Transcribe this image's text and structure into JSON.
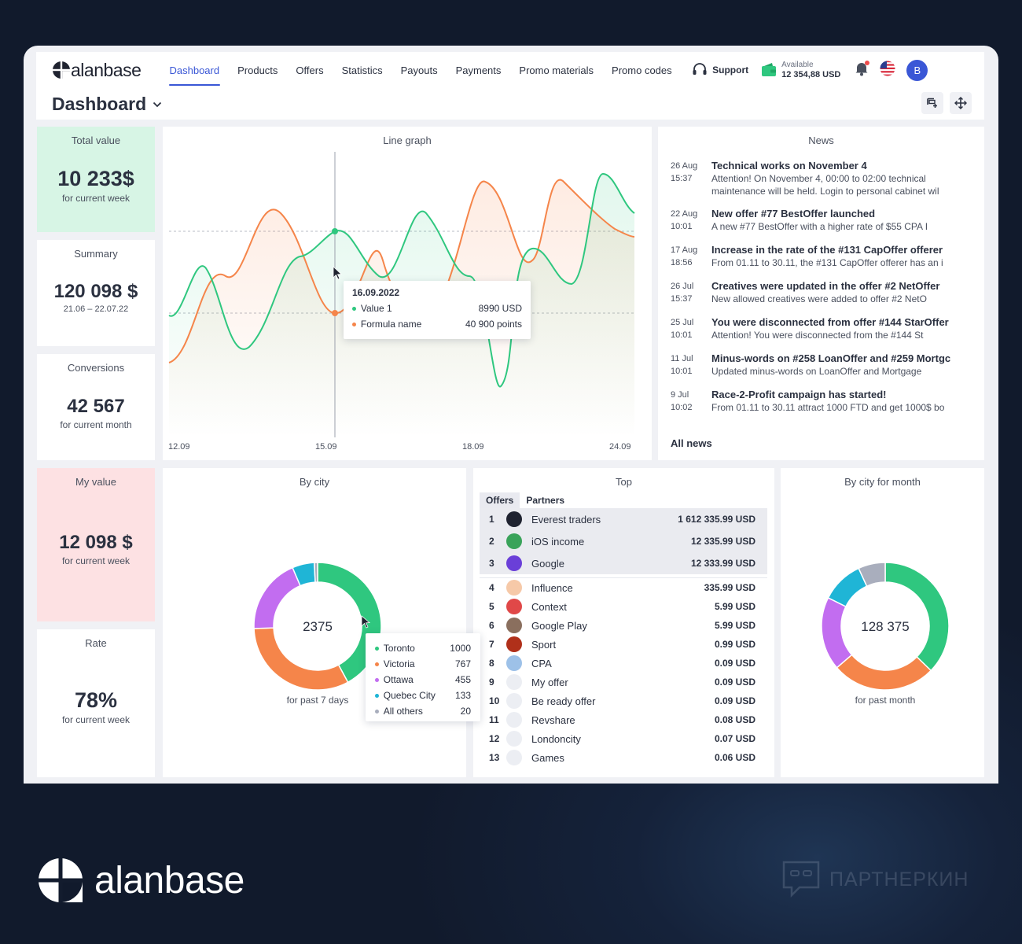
{
  "app": {
    "logo_text": "alanbase",
    "brand_text": "alanbase",
    "watermark_text": "ПАРТНЕРКИН"
  },
  "nav": {
    "items": [
      {
        "label": "Dashboard",
        "active": true
      },
      {
        "label": "Products"
      },
      {
        "label": "Offers"
      },
      {
        "label": "Statistics"
      },
      {
        "label": "Payouts"
      },
      {
        "label": "Payments"
      },
      {
        "label": "Promo materials"
      },
      {
        "label": "Promo codes"
      }
    ],
    "support_label": "Support",
    "wallet_label": "Available",
    "wallet_value": "12 354,88 USD",
    "avatar_letter": "B"
  },
  "page": {
    "title": "Dashboard"
  },
  "stats": {
    "total": {
      "title": "Total value",
      "value": "10 233$",
      "sub": "for current week",
      "bg": "#d7f5e5"
    },
    "summary": {
      "title": "Summary",
      "value": "120 098 $",
      "sub": "21.06 – 22.07.22"
    },
    "conversions": {
      "title": "Conversions",
      "value": "42 567",
      "sub": "for current month"
    },
    "myvalue": {
      "title": "My value",
      "value": "12 098 $",
      "sub": "for current week",
      "bg": "#fde1e3"
    },
    "rate": {
      "title": "Rate",
      "value": "78%",
      "sub": "for current week"
    }
  },
  "line_chart": {
    "title": "Line graph",
    "x_ticks": [
      "12.09",
      "15.09",
      "18.09",
      "24.09"
    ],
    "tooltip": {
      "date": "16.09.2022",
      "rows": [
        {
          "name": "Value 1",
          "value": "8990 USD",
          "color": "#2fc77f"
        },
        {
          "name": "Formula name",
          "value": "40 900 points",
          "color": "#f5854a"
        }
      ]
    },
    "colors": {
      "green": "#2fc77f",
      "orange": "#f5854a"
    }
  },
  "news": {
    "title": "News",
    "items": [
      {
        "date": "26 Aug",
        "time": "15:37",
        "title": "Technical works on November 4",
        "text": "Attention! On November 4, 00:00 to 02:00 technical maintenance will be held. Login to personal cabinet wil",
        "two_lines": true
      },
      {
        "date": "22 Aug",
        "time": "10:01",
        "title": "New offer #77 BestOffer launched",
        "text": "A new #77 BestOffer with a higher rate of $55 CPA I"
      },
      {
        "date": "17 Aug",
        "time": "18:56",
        "title": "Increase in the rate of the #131 CapOffer offerer",
        "text": "From 01.11 to 30.11, the #131 CapOffer offerer has an i"
      },
      {
        "date": "26 Jul",
        "time": "15:37",
        "title": "Creatives were updated in the offer #2 NetOffer",
        "text": "New allowed creatives were added to offer #2 NetO"
      },
      {
        "date": "25 Jul",
        "time": "10:01",
        "title": "You were disconnected from offer #144 StarOffer",
        "text": "Attention! You were disconnected from the #144 St"
      },
      {
        "date": "11 Jul",
        "time": "10:01",
        "title": "Minus-words on #258 LoanOffer and #259 Mortgc",
        "text": "Updated minus-words on LoanOffer and Mortgage"
      },
      {
        "date": "9 Jul",
        "time": "10:02",
        "title": "Race-2-Profit campaign has started!",
        "text": "From 01.11 to 30.11 attract 1000 FTD and get 1000$ bo"
      }
    ],
    "all_link": "All news"
  },
  "by_city": {
    "title": "By city",
    "center": "2375",
    "caption": "for past 7 days",
    "legend": [
      {
        "name": "Toronto",
        "value": "1000",
        "color": "#2fc77f"
      },
      {
        "name": "Victoria",
        "value": "767",
        "color": "#f5854a"
      },
      {
        "name": "Ottawa",
        "value": "455",
        "color": "#c26df0"
      },
      {
        "name": "Quebec City",
        "value": "133",
        "color": "#1fb5d6"
      },
      {
        "name": "All others",
        "value": "20",
        "color": "#a9aebd"
      }
    ]
  },
  "top": {
    "title": "Top",
    "tabs": [
      "Offers",
      "Partners"
    ],
    "rows": [
      {
        "rank": "1",
        "name": "Everest traders",
        "value": "1 612 335.99 USD",
        "icon_color": "#1f2330"
      },
      {
        "rank": "2",
        "name": "iOS income",
        "value": "12 335.99 USD",
        "icon_color": "#3aa35a"
      },
      {
        "rank": "3",
        "name": "Google",
        "value": "12 333.99 USD",
        "icon_color": "#6a3fd8"
      },
      {
        "rank": "4",
        "name": "Influence",
        "value": "335.99 USD",
        "icon_color": "#f6c9a8"
      },
      {
        "rank": "5",
        "name": "Context",
        "value": "5.99 USD",
        "icon_color": "#e04848"
      },
      {
        "rank": "6",
        "name": "Google Play",
        "value": "5.99 USD",
        "icon_color": "#8a6f5e"
      },
      {
        "rank": "7",
        "name": "Sport",
        "value": "0.99 USD",
        "icon_color": "#b0301a"
      },
      {
        "rank": "8",
        "name": "CPA",
        "value": "0.09 USD",
        "icon_color": "#9dc1e8"
      },
      {
        "rank": "9",
        "name": "My offer",
        "value": "0.09 USD",
        "icon_color": "#eceef3"
      },
      {
        "rank": "10",
        "name": "Be ready offer",
        "value": "0.09 USD",
        "icon_color": "#eceef3"
      },
      {
        "rank": "11",
        "name": "Revshare",
        "value": "0.08 USD",
        "icon_color": "#eceef3"
      },
      {
        "rank": "12",
        "name": "Londoncity",
        "value": "0.07 USD",
        "icon_color": "#eceef3"
      },
      {
        "rank": "13",
        "name": "Games",
        "value": "0.06 USD",
        "icon_color": "#eceef3"
      }
    ]
  },
  "by_city_month": {
    "title": "By city for month",
    "center": "128 375",
    "caption": "for past month"
  }
}
